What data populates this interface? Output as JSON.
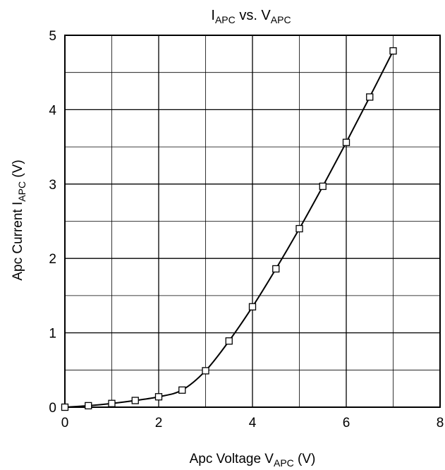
{
  "chart_data": {
    "type": "line",
    "title": {
      "main": "I",
      "sub": "APC",
      "mid": " vs. V",
      "sub2": "APC"
    },
    "xlabel": {
      "pre": "Apc Voltage  V",
      "sub": "APC",
      "post": "  (V)"
    },
    "ylabel": {
      "pre": "Apc Current  I",
      "sub": "APC",
      "post": "  (V)"
    },
    "xlim": [
      0,
      8
    ],
    "ylim": [
      0,
      5
    ],
    "xticks": [
      0,
      2,
      4,
      6,
      8
    ],
    "yticks": [
      0,
      1,
      2,
      3,
      4,
      5
    ],
    "x_grid": [
      1,
      2,
      3,
      4,
      5,
      6,
      7
    ],
    "y_grid": [
      0.5,
      1,
      1.5,
      2,
      2.5,
      3,
      3.5,
      4,
      4.5
    ],
    "grid": true,
    "marker": "square",
    "line_color": "#000000",
    "series": [
      {
        "x": [
          0,
          0.5,
          1,
          1.5,
          2,
          2.5,
          3,
          3.5,
          4,
          4.5,
          5,
          5.5,
          6,
          6.5,
          7
        ],
        "y": [
          0,
          0.02,
          0.05,
          0.09,
          0.14,
          0.23,
          0.49,
          0.89,
          1.35,
          1.86,
          2.4,
          2.97,
          3.56,
          4.17,
          4.79
        ]
      }
    ]
  }
}
